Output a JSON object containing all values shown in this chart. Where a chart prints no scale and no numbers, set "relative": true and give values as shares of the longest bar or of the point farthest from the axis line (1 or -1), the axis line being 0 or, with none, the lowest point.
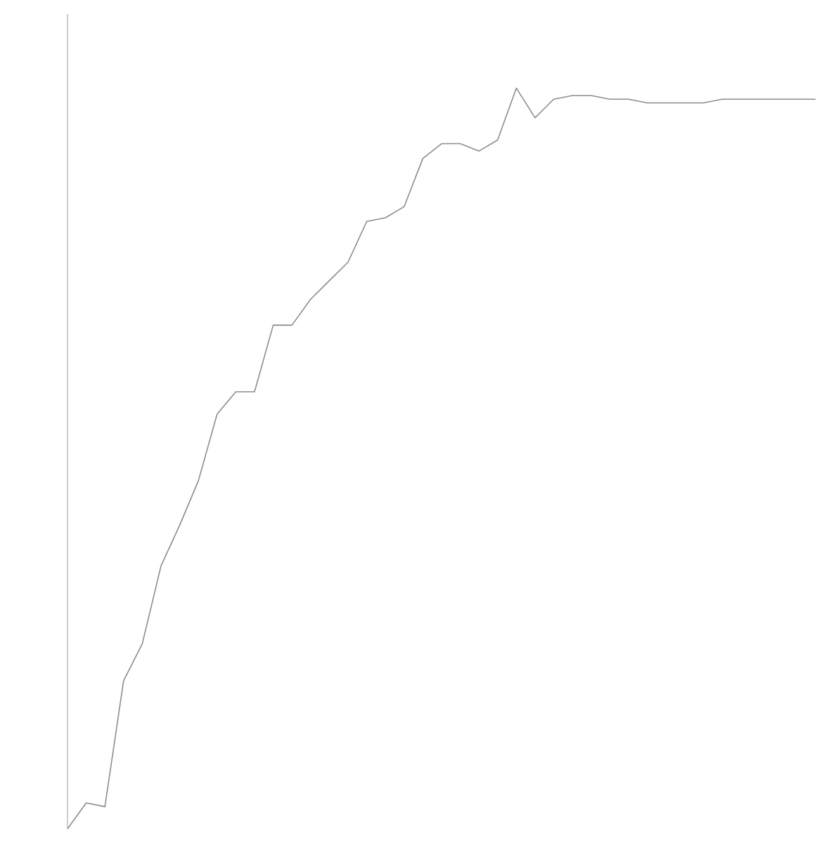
{
  "chart_data": {
    "type": "line",
    "relative": true,
    "categories": [
      null,
      null,
      null,
      null,
      null,
      null,
      null,
      null,
      null,
      null,
      null,
      null,
      null,
      null,
      null,
      null,
      null,
      null,
      null,
      null,
      null,
      null,
      null,
      null,
      null,
      null,
      null,
      null,
      null,
      null,
      null,
      null,
      null,
      null,
      null,
      null,
      null,
      null,
      null,
      null,
      null
    ],
    "series": [
      {
        "color": "#8c8c8c",
        "values": [
          0,
          0.035,
          0.03,
          0.2,
          0.25,
          0.355,
          0.41,
          0.47,
          0.56,
          0.59,
          0.59,
          0.68,
          0.68,
          0.715,
          0.74,
          0.765,
          0.82,
          0.825,
          0.84,
          0.905,
          0.925,
          0.925,
          0.915,
          0.93,
          1,
          0.96,
          0.985,
          0.99,
          0.99,
          0.985,
          0.985,
          0.98,
          0.98,
          0.98,
          0.98,
          0.985,
          0.985,
          0.985,
          0.985,
          0.985,
          0.985
        ]
      }
    ]
  }
}
